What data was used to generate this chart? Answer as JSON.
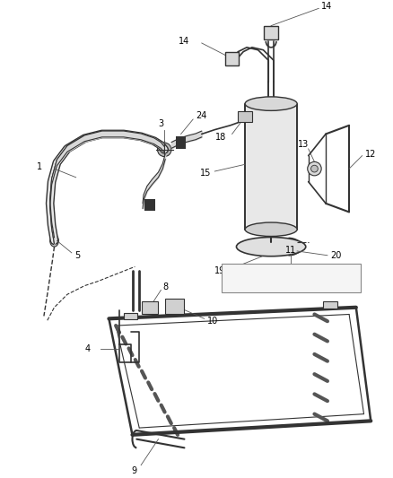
{
  "background_color": "#ffffff",
  "line_color": "#333333",
  "fig_width": 4.38,
  "fig_height": 5.33,
  "dpi": 100,
  "label_fs": 7.0
}
